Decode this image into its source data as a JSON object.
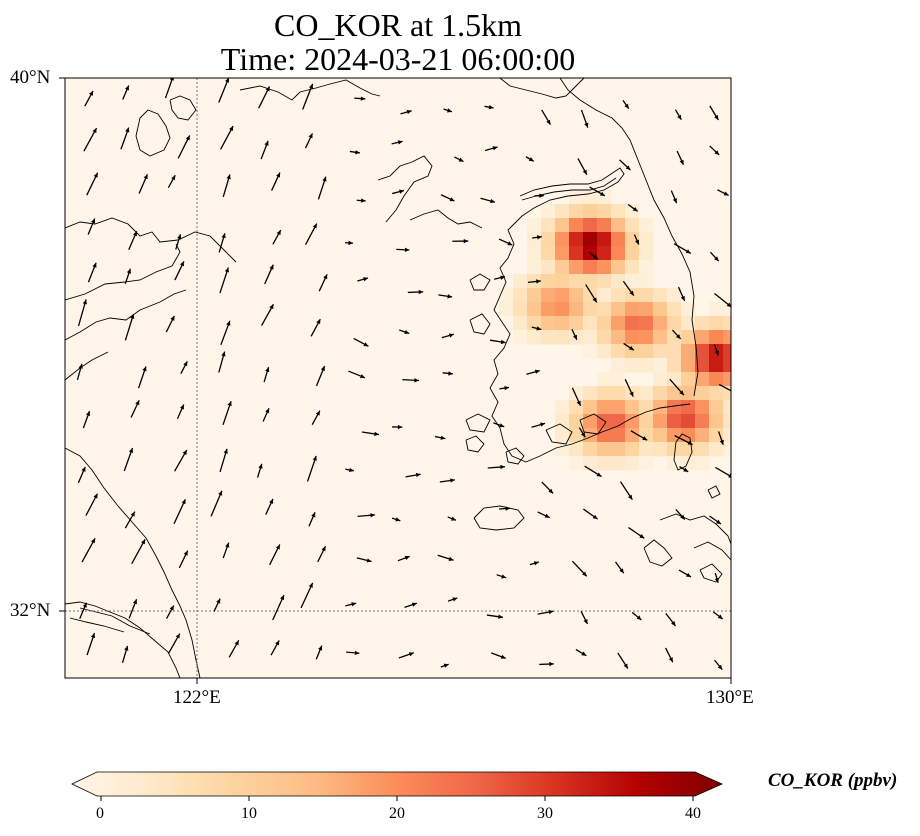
{
  "title": {
    "line1": "CO_KOR at 1.5km",
    "line2": "Time: 2024-03-21 06:00:00"
  },
  "axes": {
    "lat_ticks": [
      "40°N",
      "32°N"
    ],
    "lon_ticks": [
      "122°E",
      "130°E"
    ],
    "lon_range": [
      120,
      130
    ],
    "lat_range": [
      31,
      40
    ]
  },
  "colorbar": {
    "label": "CO_KOR (ppbv)",
    "ticks": [
      "0",
      "10",
      "20",
      "30",
      "40"
    ],
    "range": [
      0,
      40
    ],
    "extend": "both",
    "colormap": "OrRd",
    "colors": [
      "#fff7ec",
      "#fee8c8",
      "#fdd49e",
      "#fdbb84",
      "#fc8d59",
      "#ef6548",
      "#d7301f",
      "#b30000",
      "#7f0000"
    ]
  },
  "chart_data": {
    "type": "heatmap",
    "title": "CO_KOR at 1.5km\nTime: 2024-03-21 06:00:00",
    "xlabel": "",
    "ylabel": "",
    "xlim": [
      120,
      130
    ],
    "ylim": [
      31,
      40
    ],
    "grid": true,
    "hotspots": [
      {
        "lon": 127.9,
        "lat": 37.5,
        "value": 38
      },
      {
        "lon": 129.8,
        "lat": 35.8,
        "value": 34
      },
      {
        "lon": 129.3,
        "lat": 34.9,
        "value": 28
      },
      {
        "lon": 128.2,
        "lat": 34.8,
        "value": 26
      },
      {
        "lon": 128.6,
        "lat": 36.3,
        "value": 24
      },
      {
        "lon": 127.4,
        "lat": 36.6,
        "value": 20
      }
    ],
    "wind_vectors": "overlay"
  }
}
